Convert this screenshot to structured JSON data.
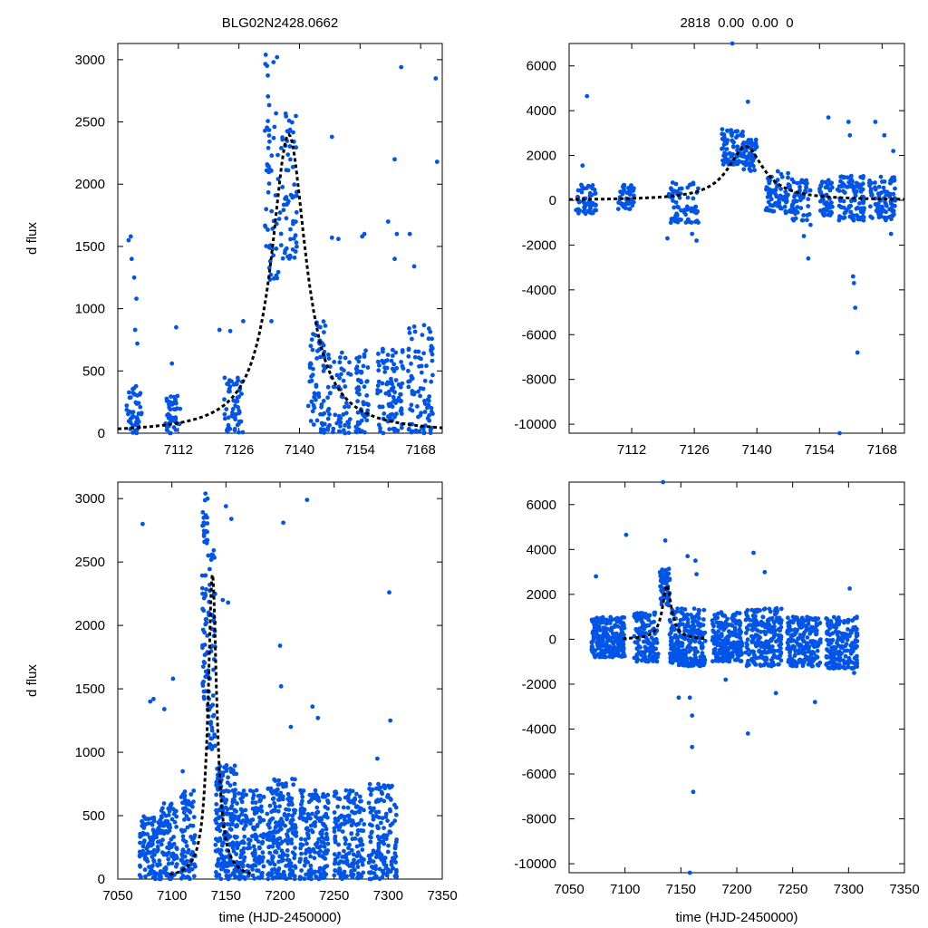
{
  "colors": {
    "points": "#0055e8",
    "model": "#000000",
    "axes": "#000000",
    "background": "#ffffff"
  },
  "chart_data": [
    {
      "id": "panel-top-left",
      "type": "scatter",
      "title": "BLG02N2428.0662",
      "xlabel": "",
      "ylabel": "d flux",
      "xlim": [
        7098,
        7173
      ],
      "ylim": [
        0,
        3130
      ],
      "xticks": [
        7112,
        7126,
        7140,
        7154,
        7168
      ],
      "yticks": [
        0,
        500,
        1000,
        1500,
        2000,
        2500,
        3000
      ],
      "grid": false,
      "series": [
        {
          "kind": "points",
          "segments": [
            {
              "x": [
                7100,
                7103.5
              ],
              "y": [
                0,
                380
              ],
              "n": 48
            },
            {
              "x": [
                7109,
                7112.5
              ],
              "y": [
                0,
                300
              ],
              "n": 45
            },
            {
              "x": [
                7122.5,
                7127
              ],
              "y": [
                0,
                450
              ],
              "n": 55
            },
            {
              "x": [
                7132,
                7133
              ],
              "y": [
                1500,
                3000
              ],
              "n": 22
            },
            {
              "x": [
                7133,
                7135.5
              ],
              "y": [
                1200,
                2600
              ],
              "n": 28
            },
            {
              "x": [
                7135.5,
                7139.5
              ],
              "y": [
                1400,
                2600
              ],
              "n": 65
            },
            {
              "x": [
                7142,
                7146
              ],
              "y": [
                0,
                900
              ],
              "n": 70
            },
            {
              "x": [
                7146.5,
                7152
              ],
              "y": [
                0,
                700
              ],
              "n": 60
            },
            {
              "x": [
                7153,
                7156
              ],
              "y": [
                0,
                700
              ],
              "n": 55
            },
            {
              "x": [
                7158,
                7164
              ],
              "y": [
                0,
                700
              ],
              "n": 95
            },
            {
              "x": [
                7165,
                7171
              ],
              "y": [
                0,
                900
              ],
              "n": 90
            }
          ],
          "outliers": [
            [
              7100.5,
              1550
            ],
            [
              7101,
              1580
            ],
            [
              7101.2,
              1400
            ],
            [
              7101.8,
              1250
            ],
            [
              7102.3,
              1080
            ],
            [
              7102,
              830
            ],
            [
              7102.5,
              720
            ],
            [
              7111.5,
              850
            ],
            [
              7110.5,
              560
            ],
            [
              7121.5,
              830
            ],
            [
              7124,
              820
            ],
            [
              7127,
              900
            ],
            [
              7132.2,
              3040
            ],
            [
              7132.5,
              2950
            ],
            [
              7134,
              2980
            ],
            [
              7134.8,
              3020
            ],
            [
              7133.5,
              900
            ],
            [
              7147.5,
              2380
            ],
            [
              7147.5,
              1570
            ],
            [
              7149,
              1560
            ],
            [
              7155,
              1600
            ],
            [
              7154.5,
              1580
            ],
            [
              7160.5,
              1700
            ],
            [
              7162,
              2200
            ],
            [
              7162.5,
              1600
            ],
            [
              7162,
              1400
            ],
            [
              7163.5,
              2940
            ],
            [
              7165.5,
              1600
            ],
            [
              7166.5,
              1340
            ],
            [
              7171.5,
              2850
            ],
            [
              7171.8,
              2180
            ]
          ]
        },
        {
          "kind": "model",
          "t0": 7137.5,
          "tE": 4.8,
          "amp": 2400,
          "line": "dashed",
          "xrange": [
            7098,
            7173
          ]
        }
      ]
    },
    {
      "id": "panel-top-right",
      "type": "scatter",
      "title": "2818  0.00  0.00  0",
      "xlabel": "",
      "ylabel": "",
      "xlim": [
        7098,
        7173
      ],
      "ylim": [
        -10400,
        7000
      ],
      "xticks": [
        7112,
        7126,
        7140,
        7154,
        7168
      ],
      "yticks": [
        -10000,
        -8000,
        -6000,
        -4000,
        -2000,
        0,
        2000,
        4000,
        6000
      ],
      "grid": false,
      "series": [
        {
          "kind": "points",
          "segments": [
            {
              "x": [
                7099.5,
                7104
              ],
              "y": [
                -600,
                700
              ],
              "n": 60
            },
            {
              "x": [
                7109,
                7112.5
              ],
              "y": [
                -400,
                800
              ],
              "n": 50
            },
            {
              "x": [
                7120,
                7127
              ],
              "y": [
                -1000,
                800
              ],
              "n": 70
            },
            {
              "x": [
                7132,
                7137
              ],
              "y": [
                1600,
                3200
              ],
              "n": 75
            },
            {
              "x": [
                7137,
                7140
              ],
              "y": [
                1300,
                2800
              ],
              "n": 55
            },
            {
              "x": [
                7142,
                7148
              ],
              "y": [
                -600,
                1300
              ],
              "n": 80
            },
            {
              "x": [
                7148,
                7152
              ],
              "y": [
                -900,
                900
              ],
              "n": 55
            },
            {
              "x": [
                7154,
                7157
              ],
              "y": [
                -700,
                900
              ],
              "n": 50
            },
            {
              "x": [
                7158,
                7164
              ],
              "y": [
                -900,
                1100
              ],
              "n": 95
            },
            {
              "x": [
                7165,
                7171
              ],
              "y": [
                -900,
                1100
              ],
              "n": 90
            }
          ],
          "outliers": [
            [
              7102,
              4650
            ],
            [
              7101,
              1550
            ],
            [
              7120,
              -1700
            ],
            [
              7125.5,
              -1500
            ],
            [
              7126.5,
              -1800
            ],
            [
              7134.5,
              7000
            ],
            [
              7138,
              4400
            ],
            [
              7150.5,
              -1600
            ],
            [
              7151.5,
              -2600
            ],
            [
              7152,
              -1100
            ],
            [
              7156,
              3700
            ],
            [
              7158.5,
              -10400
            ],
            [
              7160.5,
              3500
            ],
            [
              7160.8,
              2900
            ],
            [
              7161.5,
              -3400
            ],
            [
              7161.7,
              -3700
            ],
            [
              7162,
              -4800
            ],
            [
              7162.5,
              -6800
            ],
            [
              7166.5,
              3500
            ],
            [
              7168.5,
              2900
            ],
            [
              7170.5,
              2200
            ],
            [
              7170,
              -1500
            ]
          ]
        },
        {
          "kind": "model",
          "t0": 7137.5,
          "tE": 4.8,
          "amp": 2400,
          "line": "dashed",
          "xrange": [
            7098,
            7173
          ]
        }
      ]
    },
    {
      "id": "panel-bottom-left",
      "type": "scatter",
      "title": "",
      "xlabel": "time (HJD-2450000)",
      "ylabel": "d flux",
      "xlim": [
        7050,
        7350
      ],
      "ylim": [
        0,
        3130
      ],
      "xticks": [
        7050,
        7100,
        7150,
        7200,
        7250,
        7300,
        7350
      ],
      "yticks": [
        0,
        500,
        1000,
        1500,
        2000,
        2500,
        3000
      ],
      "grid": false,
      "series": [
        {
          "kind": "points",
          "segments": [
            {
              "x": [
                7070,
                7090
              ],
              "y": [
                0,
                500
              ],
              "n": 120
            },
            {
              "x": [
                7090,
                7105
              ],
              "y": [
                0,
                600
              ],
              "n": 90
            },
            {
              "x": [
                7108,
                7122
              ],
              "y": [
                0,
                700
              ],
              "n": 90
            },
            {
              "x": [
                7128,
                7133
              ],
              "y": [
                1400,
                3000
              ],
              "n": 55
            },
            {
              "x": [
                7133,
                7140
              ],
              "y": [
                1000,
                2600
              ],
              "n": 60
            },
            {
              "x": [
                7140,
                7160
              ],
              "y": [
                0,
                900
              ],
              "n": 200
            },
            {
              "x": [
                7160,
                7185
              ],
              "y": [
                0,
                700
              ],
              "n": 170
            },
            {
              "x": [
                7188,
                7215
              ],
              "y": [
                0,
                800
              ],
              "n": 200
            },
            {
              "x": [
                7218,
                7245
              ],
              "y": [
                0,
                700
              ],
              "n": 180
            },
            {
              "x": [
                7250,
                7278
              ],
              "y": [
                0,
                700
              ],
              "n": 170
            },
            {
              "x": [
                7282,
                7308
              ],
              "y": [
                0,
                750
              ],
              "n": 160
            }
          ],
          "outliers": [
            [
              7073,
              2800
            ],
            [
              7080,
              1400
            ],
            [
              7083,
              1420
            ],
            [
              7093,
              1340
            ],
            [
              7101,
              1580
            ],
            [
              7110,
              850
            ],
            [
              7131,
              3040
            ],
            [
              7133,
              3000
            ],
            [
              7150,
              2940
            ],
            [
              7155,
              2840
            ],
            [
              7147,
              2200
            ],
            [
              7152,
              2180
            ],
            [
              7200,
              1840
            ],
            [
              7203,
              2810
            ],
            [
              7201,
              1520
            ],
            [
              7210,
              1200
            ],
            [
              7225,
              2990
            ],
            [
              7230,
              1360
            ],
            [
              7235,
              1270
            ],
            [
              7290,
              950
            ],
            [
              7301,
              2260
            ],
            [
              7302,
              1250
            ]
          ]
        },
        {
          "kind": "model",
          "t0": 7137.5,
          "tE": 4.8,
          "amp": 2400,
          "line": "dashed",
          "xrange": [
            7098,
            7173
          ]
        }
      ]
    },
    {
      "id": "panel-bottom-right",
      "type": "scatter",
      "title": "",
      "xlabel": "time (HJD-2450000)",
      "ylabel": "",
      "xlim": [
        7050,
        7350
      ],
      "ylim": [
        -10400,
        7000
      ],
      "xticks": [
        7050,
        7100,
        7150,
        7200,
        7250,
        7300,
        7350
      ],
      "yticks": [
        -10000,
        -8000,
        -6000,
        -4000,
        -2000,
        0,
        2000,
        4000,
        6000
      ],
      "grid": false,
      "series": [
        {
          "kind": "points",
          "segments": [
            {
              "x": [
                7070,
                7100
              ],
              "y": [
                -800,
                1000
              ],
              "n": 220
            },
            {
              "x": [
                7108,
                7130
              ],
              "y": [
                -1000,
                1200
              ],
              "n": 140
            },
            {
              "x": [
                7131,
                7140
              ],
              "y": [
                1500,
                3200
              ],
              "n": 60
            },
            {
              "x": [
                7140,
                7172
              ],
              "y": [
                -1200,
                1400
              ],
              "n": 260
            },
            {
              "x": [
                7178,
                7205
              ],
              "y": [
                -1000,
                1200
              ],
              "n": 200
            },
            {
              "x": [
                7208,
                7240
              ],
              "y": [
                -1200,
                1400
              ],
              "n": 230
            },
            {
              "x": [
                7245,
                7275
              ],
              "y": [
                -1200,
                1000
              ],
              "n": 200
            },
            {
              "x": [
                7280,
                7308
              ],
              "y": [
                -1300,
                1000
              ],
              "n": 190
            }
          ],
          "outliers": [
            [
              7101,
              4650
            ],
            [
              7074,
              2800
            ],
            [
              7134,
              7000
            ],
            [
              7136,
              4400
            ],
            [
              7158,
              -10400
            ],
            [
              7160,
              -3400
            ],
            [
              7160,
              -4800
            ],
            [
              7161,
              -6800
            ],
            [
              7156,
              3700
            ],
            [
              7163,
              3500
            ],
            [
              7164,
              2900
            ],
            [
              7158,
              -2600
            ],
            [
              7148,
              -2600
            ],
            [
              7190,
              -1800
            ],
            [
              7210,
              -4200
            ],
            [
              7215,
              3850
            ],
            [
              7225,
              2990
            ],
            [
              7235,
              -2400
            ],
            [
              7270,
              -2800
            ],
            [
              7301,
              2260
            ],
            [
              7305,
              -1500
            ]
          ]
        },
        {
          "kind": "model",
          "t0": 7137.5,
          "tE": 4.8,
          "amp": 2400,
          "line": "dashed",
          "xrange": [
            7098,
            7173
          ]
        }
      ]
    }
  ]
}
